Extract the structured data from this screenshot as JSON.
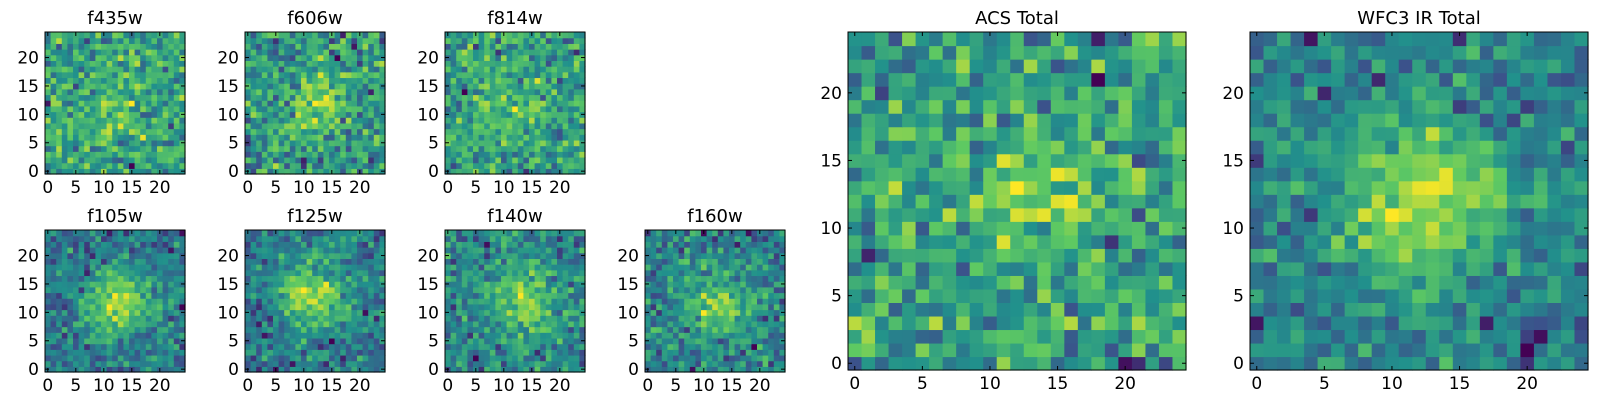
{
  "colormap": {
    "name": "viridis",
    "stops": [
      "#440154",
      "#3b528b",
      "#21918c",
      "#5ec962",
      "#fde725"
    ],
    "frame_color": "#000000",
    "background": "#ffffff"
  },
  "chart_data": [
    {
      "type": "heatmap",
      "title": "f435w",
      "xlim": [
        0,
        24
      ],
      "ylim": [
        0,
        24
      ],
      "x_ticks": [
        "0",
        "5",
        "10",
        "15",
        "20"
      ],
      "y_ticks": [
        "0",
        "5",
        "10",
        "15",
        "20"
      ],
      "grid": false,
      "colormap": "viridis",
      "values_note": "",
      "seed": 11,
      "blob": {
        "cx": 12,
        "cy": 12,
        "amplitude": 0.15,
        "width": 4.0
      }
    },
    {
      "type": "heatmap",
      "title": "f606w",
      "xlim": [
        0,
        24
      ],
      "ylim": [
        0,
        24
      ],
      "x_ticks": [
        "0",
        "5",
        "10",
        "15",
        "20"
      ],
      "y_ticks": [
        "0",
        "5",
        "10",
        "15",
        "20"
      ],
      "grid": false,
      "colormap": "viridis",
      "seed": 22,
      "blob": {
        "cx": 13,
        "cy": 12,
        "amplitude": 0.3,
        "width": 3.5
      }
    },
    {
      "type": "heatmap",
      "title": "f814w",
      "xlim": [
        0,
        24
      ],
      "ylim": [
        0,
        24
      ],
      "x_ticks": [
        "0",
        "5",
        "10",
        "15",
        "20"
      ],
      "y_ticks": [
        "0",
        "5",
        "10",
        "15",
        "20"
      ],
      "grid": false,
      "colormap": "viridis",
      "seed": 33,
      "blob": {
        "cx": 12,
        "cy": 12,
        "amplitude": 0.15,
        "width": 3.5
      }
    },
    {
      "type": "heatmap",
      "title": "f105w",
      "xlim": [
        0,
        24
      ],
      "ylim": [
        0,
        24
      ],
      "x_ticks": [
        "0",
        "5",
        "10",
        "15",
        "20"
      ],
      "y_ticks": [
        "0",
        "5",
        "10",
        "15",
        "20"
      ],
      "grid": false,
      "colormap": "viridis",
      "seed": 44,
      "blob": {
        "cx": 13,
        "cy": 12,
        "amplitude": 0.55,
        "width": 4.0
      }
    },
    {
      "type": "heatmap",
      "title": "f125w",
      "xlim": [
        0,
        24
      ],
      "ylim": [
        0,
        24
      ],
      "x_ticks": [
        "0",
        "5",
        "10",
        "15",
        "20"
      ],
      "y_ticks": [
        "0",
        "5",
        "10",
        "15",
        "20"
      ],
      "grid": false,
      "colormap": "viridis",
      "seed": 55,
      "blob": {
        "cx": 12,
        "cy": 13,
        "amplitude": 0.5,
        "width": 4.0
      }
    },
    {
      "type": "heatmap",
      "title": "f140w",
      "xlim": [
        0,
        24
      ],
      "ylim": [
        0,
        24
      ],
      "x_ticks": [
        "0",
        "5",
        "10",
        "15",
        "20"
      ],
      "y_ticks": [
        "0",
        "5",
        "10",
        "15",
        "20"
      ],
      "grid": false,
      "colormap": "viridis",
      "seed": 66,
      "blob": {
        "cx": 14,
        "cy": 12,
        "amplitude": 0.45,
        "width": 3.5
      }
    },
    {
      "type": "heatmap",
      "title": "f160w",
      "xlim": [
        0,
        24
      ],
      "ylim": [
        0,
        24
      ],
      "x_ticks": [
        "0",
        "5",
        "10",
        "15",
        "20"
      ],
      "y_ticks": [
        "0",
        "5",
        "10",
        "15",
        "20"
      ],
      "grid": false,
      "colormap": "viridis",
      "seed": 77,
      "blob": {
        "cx": 12,
        "cy": 12,
        "amplitude": 0.4,
        "width": 4.0
      }
    },
    {
      "type": "heatmap",
      "title": "ACS Total",
      "xlim": [
        0,
        24
      ],
      "ylim": [
        0,
        24
      ],
      "x_ticks": [
        "0",
        "5",
        "10",
        "15",
        "20"
      ],
      "y_ticks": [
        "0",
        "5",
        "10",
        "15",
        "20"
      ],
      "grid": false,
      "colormap": "viridis",
      "seed": 88,
      "blob": {
        "cx": 13,
        "cy": 12,
        "amplitude": 0.3,
        "width": 3.0
      }
    },
    {
      "type": "heatmap",
      "title": "WFC3 IR Total",
      "xlim": [
        0,
        24
      ],
      "ylim": [
        0,
        24
      ],
      "x_ticks": [
        "0",
        "5",
        "10",
        "15",
        "20"
      ],
      "y_ticks": [
        "0",
        "5",
        "10",
        "15",
        "20"
      ],
      "grid": false,
      "colormap": "viridis",
      "seed": 99,
      "blob": {
        "cx": 12,
        "cy": 12,
        "amplitude": 0.55,
        "width": 4.0
      }
    }
  ]
}
